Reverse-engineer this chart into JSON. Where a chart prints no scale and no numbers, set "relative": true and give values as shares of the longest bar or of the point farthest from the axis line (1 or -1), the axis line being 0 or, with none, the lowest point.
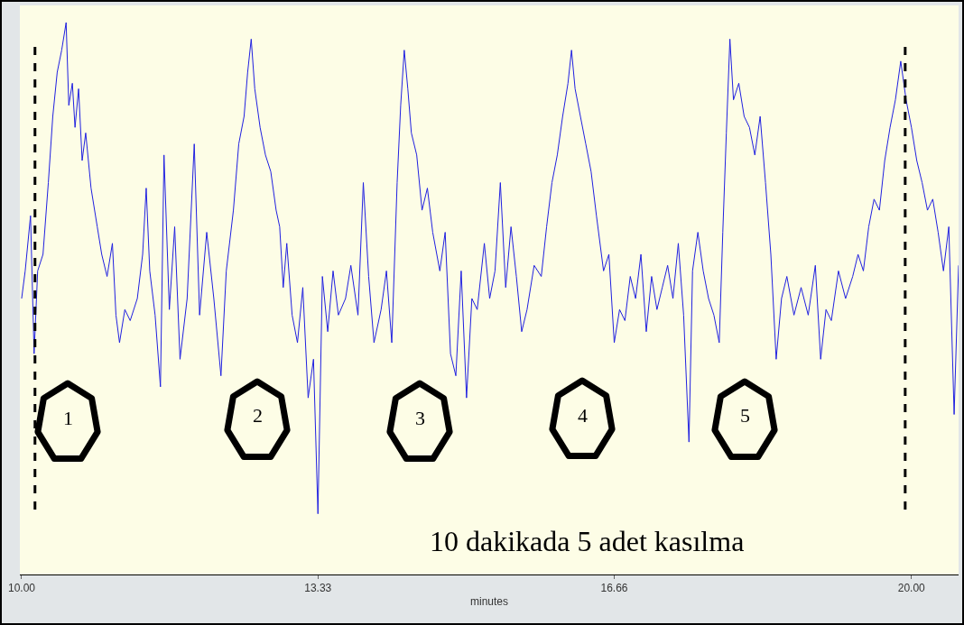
{
  "chart_data": {
    "type": "line",
    "relative": true,
    "xlabel": "minutes",
    "xlim": [
      9.98,
      20.53
    ],
    "xticks": [
      {
        "value": 10,
        "label": "10.00"
      },
      {
        "value": 13.33,
        "label": "13.33"
      },
      {
        "value": 16.66,
        "label": "16.66"
      },
      {
        "value": 20,
        "label": "20.00"
      }
    ],
    "grid": false,
    "marker": "none",
    "line_style": "solid",
    "ref_lines": [
      {
        "axis": "x",
        "value": 10.15,
        "color": "#000000",
        "line_style": "dashed"
      },
      {
        "axis": "x",
        "value": 19.93,
        "color": "#000000",
        "line_style": "dashed"
      }
    ],
    "annotations": [
      "1",
      "2",
      "3",
      "4",
      "5",
      "10 dakikada 5 adet kasılma"
    ],
    "series": [
      {
        "color": "#2020e0",
        "x": [
          10.0,
          10.04,
          10.1,
          10.14,
          10.18,
          10.24,
          10.3,
          10.35,
          10.4,
          10.45,
          10.5,
          10.53,
          10.57,
          10.6,
          10.64,
          10.68,
          10.72,
          10.78,
          10.85,
          10.9,
          10.96,
          11.02,
          11.06,
          11.1,
          11.16,
          11.22,
          11.3,
          11.36,
          11.4,
          11.44,
          11.5,
          11.56,
          11.6,
          11.66,
          11.72,
          11.78,
          11.86,
          11.94,
          12.0,
          12.08,
          12.16,
          12.24,
          12.3,
          12.38,
          12.44,
          12.5,
          12.54,
          12.58,
          12.62,
          12.68,
          12.74,
          12.8,
          12.86,
          12.9,
          12.94,
          12.98,
          13.04,
          13.1,
          13.16,
          13.22,
          13.28,
          13.33,
          13.38,
          13.44,
          13.5,
          13.56,
          13.64,
          13.7,
          13.78,
          13.84,
          13.9,
          13.96,
          14.04,
          14.1,
          14.16,
          14.22,
          14.26,
          14.3,
          14.34,
          14.38,
          14.44,
          14.5,
          14.56,
          14.62,
          14.7,
          14.76,
          14.82,
          14.88,
          14.94,
          15.0,
          15.06,
          15.12,
          15.2,
          15.26,
          15.32,
          15.38,
          15.44,
          15.5,
          15.56,
          15.62,
          15.68,
          15.76,
          15.84,
          15.9,
          15.96,
          16.02,
          16.08,
          16.14,
          16.18,
          16.22,
          16.28,
          16.34,
          16.4,
          16.46,
          16.54,
          16.6,
          16.66,
          16.72,
          16.78,
          16.84,
          16.9,
          16.96,
          17.02,
          17.08,
          17.14,
          17.2,
          17.26,
          17.32,
          17.38,
          17.44,
          17.5,
          17.54,
          17.6,
          17.66,
          17.72,
          17.78,
          17.84,
          17.88,
          17.92,
          17.96,
          18.0,
          18.06,
          18.12,
          18.18,
          18.24,
          18.3,
          18.36,
          18.42,
          18.48,
          18.54,
          18.6,
          18.68,
          18.76,
          18.84,
          18.92,
          18.98,
          19.04,
          19.1,
          19.18,
          19.26,
          19.34,
          19.4,
          19.46,
          19.52,
          19.58,
          19.64,
          19.7,
          19.76,
          19.82,
          19.88,
          19.94,
          20.0,
          20.06,
          20.12,
          20.18,
          20.24,
          20.3,
          20.36,
          20.42,
          20.48,
          20.53
        ],
        "values": [
          0.5,
          0.55,
          0.65,
          0.4,
          0.55,
          0.58,
          0.71,
          0.83,
          0.91,
          0.95,
          1.0,
          0.85,
          0.89,
          0.81,
          0.88,
          0.75,
          0.8,
          0.7,
          0.63,
          0.58,
          0.54,
          0.6,
          0.47,
          0.42,
          0.48,
          0.46,
          0.5,
          0.58,
          0.7,
          0.55,
          0.47,
          0.34,
          0.76,
          0.48,
          0.63,
          0.39,
          0.5,
          0.78,
          0.47,
          0.62,
          0.5,
          0.36,
          0.55,
          0.66,
          0.78,
          0.83,
          0.91,
          0.97,
          0.88,
          0.81,
          0.76,
          0.73,
          0.66,
          0.63,
          0.52,
          0.6,
          0.47,
          0.42,
          0.52,
          0.32,
          0.39,
          0.11,
          0.54,
          0.44,
          0.55,
          0.47,
          0.5,
          0.56,
          0.47,
          0.71,
          0.54,
          0.42,
          0.48,
          0.55,
          0.42,
          0.71,
          0.85,
          0.95,
          0.88,
          0.8,
          0.76,
          0.66,
          0.7,
          0.62,
          0.55,
          0.62,
          0.4,
          0.36,
          0.55,
          0.32,
          0.5,
          0.48,
          0.6,
          0.5,
          0.55,
          0.71,
          0.52,
          0.63,
          0.54,
          0.44,
          0.48,
          0.56,
          0.54,
          0.63,
          0.71,
          0.76,
          0.83,
          0.89,
          0.95,
          0.88,
          0.83,
          0.78,
          0.73,
          0.65,
          0.55,
          0.58,
          0.42,
          0.48,
          0.46,
          0.54,
          0.5,
          0.58,
          0.44,
          0.54,
          0.48,
          0.52,
          0.56,
          0.5,
          0.6,
          0.47,
          0.24,
          0.55,
          0.62,
          0.55,
          0.5,
          0.47,
          0.42,
          0.62,
          0.8,
          0.97,
          0.86,
          0.89,
          0.83,
          0.81,
          0.76,
          0.83,
          0.71,
          0.58,
          0.39,
          0.5,
          0.54,
          0.47,
          0.52,
          0.47,
          0.56,
          0.39,
          0.48,
          0.46,
          0.55,
          0.5,
          0.54,
          0.58,
          0.55,
          0.63,
          0.68,
          0.66,
          0.75,
          0.81,
          0.86,
          0.93,
          0.86,
          0.81,
          0.75,
          0.71,
          0.66,
          0.68,
          0.62,
          0.55,
          0.63,
          0.29,
          0.56
        ]
      }
    ]
  }
}
